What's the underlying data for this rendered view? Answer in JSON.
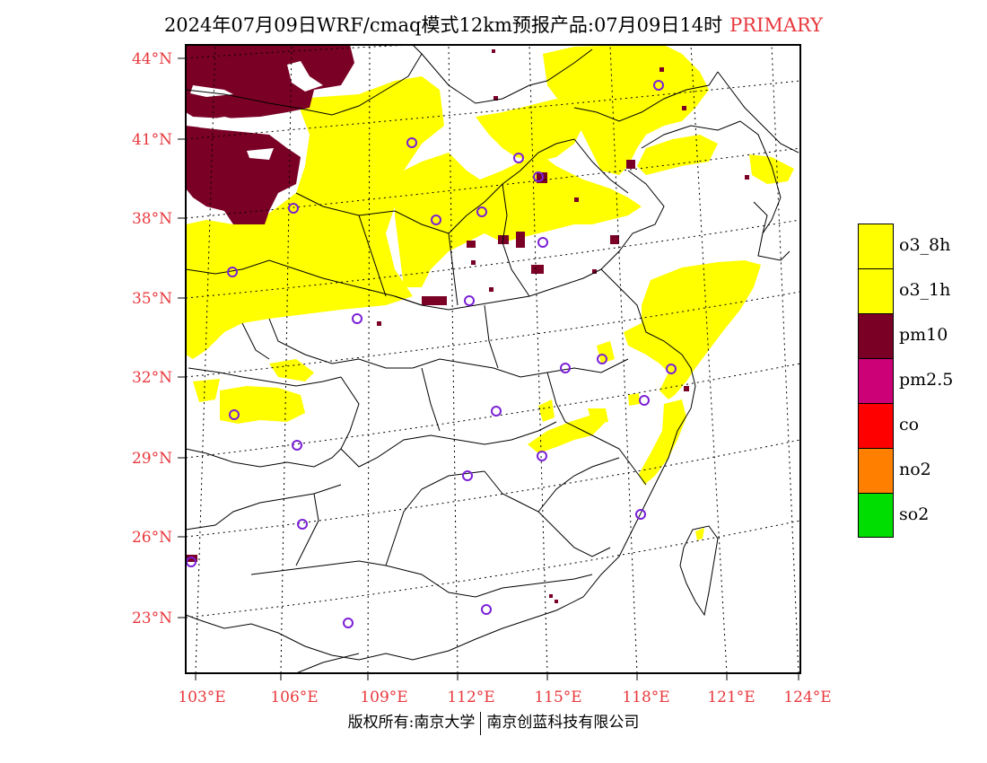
{
  "title": {
    "main": "2024年07月09日WRF/cmaq模式12km预报产品:07月09日14时",
    "tag": "PRIMARY"
  },
  "axes": {
    "lat_labels": [
      "44°N",
      "41°N",
      "38°N",
      "35°N",
      "32°N",
      "29°N",
      "26°N",
      "23°N"
    ],
    "lon_labels": [
      "103°E",
      "106°E",
      "109°E",
      "112°E",
      "115°E",
      "118°E",
      "121°E",
      "124°E"
    ]
  },
  "legend": {
    "items": [
      {
        "label": "o3_8h",
        "color": "#ffff00"
      },
      {
        "label": "o3_1h",
        "color": "#ffff00"
      },
      {
        "label": "pm10",
        "color": "#7a0026"
      },
      {
        "label": "pm2.5",
        "color": "#cc0077"
      },
      {
        "label": "co",
        "color": "#ff0000"
      },
      {
        "label": "no2",
        "color": "#ff8000"
      },
      {
        "label": "so2",
        "color": "#00dd00"
      }
    ]
  },
  "footer": {
    "left": "版权所有:南京大学",
    "right": "南京创蓝科技有限公司"
  },
  "colors": {
    "o3": "#ffff00",
    "pm10": "#7a0026",
    "station_marker": "#7b20d6",
    "label_red": "#e8383d"
  },
  "icons": {
    "station": "circle-station-icon"
  }
}
